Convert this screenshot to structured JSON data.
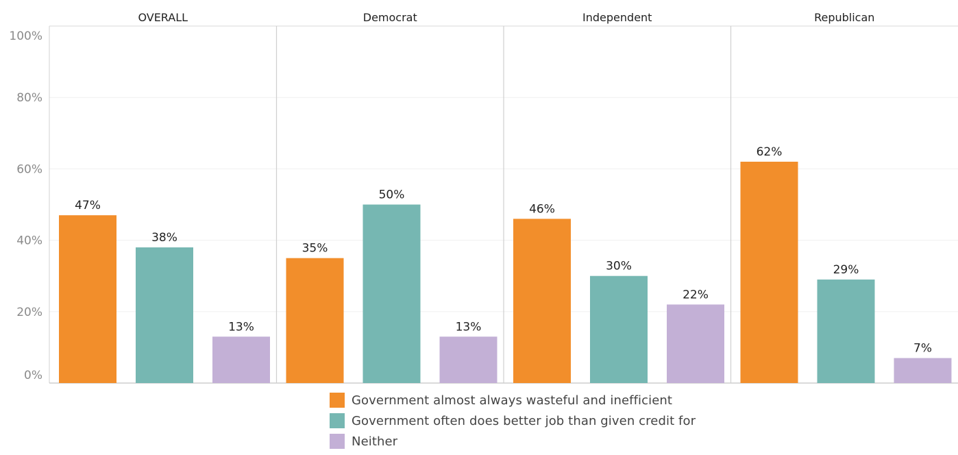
{
  "chart_data": {
    "type": "bar",
    "title": "",
    "xlabel": "",
    "ylabel": "",
    "ylim": [
      0,
      100
    ],
    "y_ticks": [
      "0%",
      "20%",
      "40%",
      "60%",
      "80%",
      "100%"
    ],
    "y_tick_values": [
      0,
      20,
      40,
      60,
      80,
      100
    ],
    "grid": true,
    "legend_placement": "bottom-center",
    "panels": [
      "OVERALL",
      "Democrat",
      "Independent",
      "Republican"
    ],
    "series": [
      {
        "name": "Government almost always wasteful and inefficient",
        "color": "#f28e2b",
        "values": [
          47,
          35,
          46,
          62
        ],
        "labels": [
          "47%",
          "35%",
          "46%",
          "62%"
        ]
      },
      {
        "name": "Government often does better job than given credit for",
        "color": "#76b7b2",
        "values": [
          38,
          50,
          30,
          29
        ],
        "labels": [
          "38%",
          "50%",
          "30%",
          "29%"
        ]
      },
      {
        "name": "Neither",
        "color": "#c3b0d6",
        "values": [
          13,
          13,
          22,
          7
        ],
        "labels": [
          "13%",
          "13%",
          "22%",
          "7%"
        ]
      }
    ]
  }
}
